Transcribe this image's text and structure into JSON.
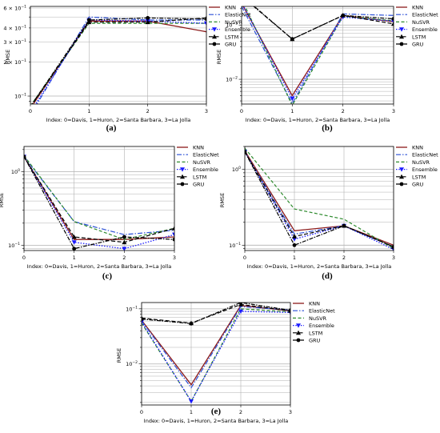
{
  "figure": {
    "page": "figure"
  },
  "chart_data": [
    {
      "panel": "a",
      "caption": "(a)",
      "type": "line",
      "ylabel": "RMSE",
      "xlabel": "Index: 0=Davis, 1=Huron, 2=Santa Barbara, 3=La Jolla",
      "yscale": "log",
      "xlim": [
        0,
        3
      ],
      "ylim": [
        0.085,
        0.62
      ],
      "x": [
        0,
        1,
        2,
        3
      ],
      "xticks": [
        "0",
        "1",
        "2",
        "3"
      ],
      "yticks": [
        {
          "value": 0.1,
          "base": "10",
          "exp": "−1",
          "coef": ""
        },
        {
          "value": 0.2,
          "base": "10",
          "exp": "−1",
          "coef": "2 × "
        },
        {
          "value": 0.3,
          "base": "10",
          "exp": "−1",
          "coef": "3 × "
        },
        {
          "value": 0.4,
          "base": "10",
          "exp": "−1",
          "coef": "4 × "
        },
        {
          "value": 0.6,
          "base": "10",
          "exp": "−1",
          "coef": "6 × "
        }
      ],
      "legend_position": "top-right",
      "series": [
        {
          "name": "KNN",
          "values": [
            0.078,
            0.46,
            0.46,
            0.37
          ]
        },
        {
          "name": "ElasticNet",
          "values": [
            0.068,
            0.5,
            0.47,
            0.47
          ]
        },
        {
          "name": "NuSVR",
          "values": [
            0.082,
            0.44,
            0.44,
            0.44
          ]
        },
        {
          "name": "Ensemble",
          "values": [
            0.072,
            0.47,
            0.46,
            0.44
          ]
        },
        {
          "name": "LSTM",
          "values": [
            0.08,
            0.45,
            0.45,
            0.49
          ]
        },
        {
          "name": "GRU",
          "values": [
            0.081,
            0.47,
            0.49,
            0.48
          ]
        }
      ]
    },
    {
      "panel": "b",
      "caption": "(b)",
      "type": "line",
      "ylabel": "RMSE",
      "xlabel": "Index: 0=Davis, 1=Huron, 2=Santa Barbara, 3=La Jolla",
      "yscale": "log",
      "xlim": [
        0,
        3
      ],
      "ylim": [
        0.0035,
        0.22
      ],
      "x": [
        0,
        1,
        2,
        3
      ],
      "xticks": [
        "0",
        "1",
        "2",
        "3"
      ],
      "yticks": [
        {
          "value": 0.01,
          "base": "10",
          "exp": "−2",
          "coef": ""
        },
        {
          "value": 0.1,
          "base": "10",
          "exp": "−1",
          "coef": ""
        }
      ],
      "legend_position": "top-right",
      "series": [
        {
          "name": "KNN",
          "values": [
            0.25,
            0.005,
            0.15,
            0.115
          ]
        },
        {
          "name": "ElasticNet",
          "values": [
            0.22,
            0.0036,
            0.16,
            0.15
          ]
        },
        {
          "name": "NuSVR",
          "values": [
            0.3,
            0.0033,
            0.145,
            0.12
          ]
        },
        {
          "name": "Ensemble",
          "values": [
            0.26,
            0.0044,
            0.14,
            0.118
          ]
        },
        {
          "name": "LSTM",
          "values": [
            0.35,
            0.055,
            0.15,
            0.105
          ]
        },
        {
          "name": "GRU",
          "values": [
            0.34,
            0.055,
            0.15,
            0.13
          ]
        }
      ]
    },
    {
      "panel": "c",
      "caption": "(c)",
      "type": "line",
      "ylabel": "RMSE",
      "xlabel": "Index: 0=Davis, 1=Huron, 2=Santa Barbara, 3=La Jolla",
      "yscale": "log",
      "xlim": [
        0,
        3
      ],
      "ylim": [
        0.085,
        2.2
      ],
      "x": [
        0,
        1,
        2,
        3
      ],
      "xticks": [
        "0",
        "1",
        "2",
        "3"
      ],
      "yticks": [
        {
          "value": 0.1,
          "base": "10",
          "exp": "−1",
          "coef": ""
        },
        {
          "value": 1,
          "base": "10",
          "exp": "0",
          "coef": ""
        }
      ],
      "legend_position": "top-right",
      "series": [
        {
          "name": "KNN",
          "values": [
            1.6,
            0.12,
            0.12,
            0.13
          ]
        },
        {
          "name": "ElasticNet",
          "values": [
            1.6,
            0.21,
            0.14,
            0.16
          ]
        },
        {
          "name": "NuSVR",
          "values": [
            1.65,
            0.21,
            0.12,
            0.17
          ]
        },
        {
          "name": "Ensemble",
          "values": [
            1.6,
            0.11,
            0.09,
            0.14
          ]
        },
        {
          "name": "LSTM",
          "values": [
            1.6,
            0.13,
            0.11,
            0.17
          ]
        },
        {
          "name": "GRU",
          "values": [
            1.6,
            0.09,
            0.13,
            0.12
          ]
        }
      ]
    },
    {
      "panel": "d",
      "caption": "(d)",
      "type": "line",
      "ylabel": "RMSE",
      "xlabel": "Index: 0=Davis, 1=Huron, 2=Santa Barbara, 3=La Jolla",
      "yscale": "log",
      "xlim": [
        0,
        3
      ],
      "ylim": [
        0.085,
        2.0
      ],
      "x": [
        0,
        1,
        2,
        3
      ],
      "xticks": [
        "0",
        "1",
        "2",
        "3"
      ],
      "yticks": [
        {
          "value": 0.1,
          "base": "10",
          "exp": "−1",
          "coef": ""
        },
        {
          "value": 1,
          "base": "10",
          "exp": "0",
          "coef": ""
        }
      ],
      "legend_position": "top-right",
      "series": [
        {
          "name": "KNN",
          "values": [
            1.75,
            0.155,
            0.18,
            0.1
          ]
        },
        {
          "name": "ElasticNet",
          "values": [
            1.7,
            0.14,
            0.18,
            0.095
          ]
        },
        {
          "name": "NuSVR",
          "values": [
            1.9,
            0.3,
            0.22,
            0.09
          ]
        },
        {
          "name": "Ensemble",
          "values": [
            1.7,
            0.12,
            0.18,
            0.088
          ]
        },
        {
          "name": "LSTM",
          "values": [
            1.7,
            0.13,
            0.18,
            0.095
          ]
        },
        {
          "name": "GRU",
          "values": [
            1.7,
            0.1,
            0.18,
            0.095
          ]
        }
      ]
    },
    {
      "panel": "e",
      "caption": "(e)",
      "type": "line",
      "ylabel": "RMSE",
      "xlabel": "Index: 0=Davis, 1=Huron, 2=Santa Barbara, 3=La Jolla",
      "yscale": "log",
      "xlim": [
        0,
        3
      ],
      "ylim": [
        0.0018,
        0.13
      ],
      "x": [
        0,
        1,
        2,
        3
      ],
      "xticks": [
        "0",
        "1",
        "2",
        "3"
      ],
      "yticks": [
        {
          "value": 0.01,
          "base": "10",
          "exp": "−2",
          "coef": ""
        },
        {
          "value": 0.1,
          "base": "10",
          "exp": "−1",
          "coef": ""
        }
      ],
      "legend_position": "top-right",
      "series": [
        {
          "name": "KNN",
          "values": [
            0.062,
            0.0042,
            0.115,
            0.092
          ]
        },
        {
          "name": "ElasticNet",
          "values": [
            0.06,
            0.0037,
            0.11,
            0.095
          ]
        },
        {
          "name": "NuSVR",
          "values": [
            0.055,
            0.0021,
            0.1,
            0.088
          ]
        },
        {
          "name": "Ensemble",
          "values": [
            0.058,
            0.0021,
            0.09,
            0.086
          ]
        },
        {
          "name": "LSTM",
          "values": [
            0.068,
            0.055,
            0.12,
            0.092
          ]
        },
        {
          "name": "GRU",
          "values": [
            0.065,
            0.054,
            0.13,
            0.094
          ]
        }
      ]
    }
  ],
  "styles": {
    "colors": {
      "KNN": "#8b1a1a",
      "ElasticNet": "#2a4fd6",
      "NuSVR": "#2e8b2e",
      "Ensemble": "#1a1aff",
      "LSTM": "#000000",
      "GRU": "#000000",
      "grid": "#b0b0b0",
      "axis": "#000000"
    }
  }
}
